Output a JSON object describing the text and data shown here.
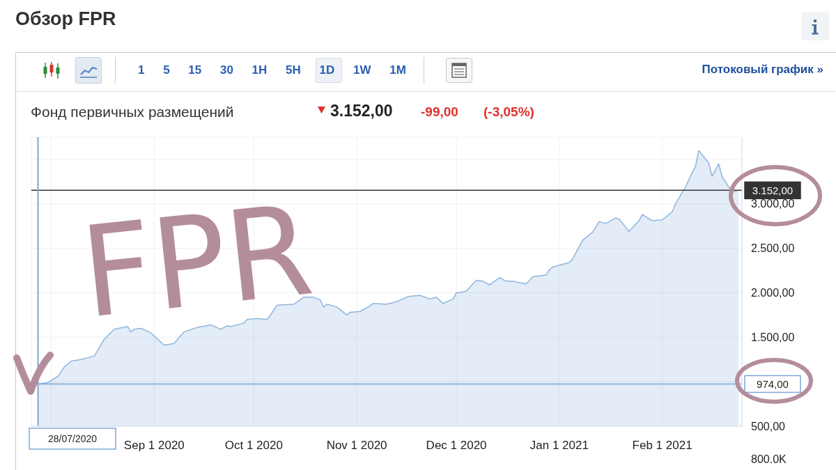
{
  "chart_data": {
    "type": "area",
    "title": "Обзор FPR",
    "subtitle": "Фонд первичных размещений",
    "x": [
      "2020-07-28",
      "2020-07-31",
      "2020-08-03",
      "2020-08-05",
      "2020-08-07",
      "2020-08-10",
      "2020-08-14",
      "2020-08-17",
      "2020-08-20",
      "2020-08-24",
      "2020-08-25",
      "2020-08-26",
      "2020-08-28",
      "2020-08-31",
      "2020-09-04",
      "2020-09-07",
      "2020-09-09",
      "2020-09-10",
      "2020-09-14",
      "2020-09-18",
      "2020-09-21",
      "2020-09-23",
      "2020-09-24",
      "2020-09-28",
      "2020-09-29",
      "2020-10-02",
      "2020-10-05",
      "2020-10-06",
      "2020-10-08",
      "2020-10-13",
      "2020-10-15",
      "2020-10-16",
      "2020-10-19",
      "2020-10-21",
      "2020-10-22",
      "2020-10-23",
      "2020-10-26",
      "2020-10-29",
      "2020-10-30",
      "2020-11-02",
      "2020-11-04",
      "2020-11-06",
      "2020-11-10",
      "2020-11-13",
      "2020-11-16",
      "2020-11-17",
      "2020-11-20",
      "2020-11-23",
      "2020-11-25",
      "2020-11-27",
      "2020-11-30",
      "2020-12-01",
      "2020-12-03",
      "2020-12-04",
      "2020-12-07",
      "2020-12-09",
      "2020-12-11",
      "2020-12-14",
      "2020-12-16",
      "2020-12-18",
      "2020-12-22",
      "2020-12-24",
      "2020-12-28",
      "2020-12-29",
      "2020-12-30",
      "2021-01-04",
      "2021-01-05",
      "2021-01-08",
      "2021-01-11",
      "2021-01-13",
      "2021-01-15",
      "2021-01-18",
      "2021-01-19",
      "2021-01-22",
      "2021-01-25",
      "2021-01-26",
      "2021-01-29",
      "2021-02-01",
      "2021-02-03",
      "2021-02-04",
      "2021-02-05",
      "2021-02-08",
      "2021-02-10",
      "2021-02-11",
      "2021-02-12",
      "2021-02-15",
      "2021-02-16",
      "2021-02-18",
      "2021-02-19",
      "2021-02-22",
      "2021-02-24"
    ],
    "values": [
      974,
      990,
      1060,
      1170,
      1230,
      1250,
      1290,
      1480,
      1590,
      1620,
      1560,
      1590,
      1600,
      1550,
      1410,
      1430,
      1520,
      1560,
      1610,
      1640,
      1590,
      1630,
      1620,
      1660,
      1700,
      1710,
      1700,
      1750,
      1860,
      1870,
      1920,
      1950,
      1950,
      1920,
      1840,
      1870,
      1840,
      1750,
      1780,
      1790,
      1830,
      1880,
      1870,
      1900,
      1950,
      1960,
      1970,
      1930,
      1950,
      1880,
      1930,
      2000,
      2010,
      2020,
      2140,
      2130,
      2090,
      2170,
      2130,
      2130,
      2100,
      2180,
      2200,
      2260,
      2290,
      2340,
      2380,
      2590,
      2680,
      2800,
      2780,
      2840,
      2830,
      2690,
      2810,
      2880,
      2810,
      2820,
      2880,
      2910,
      3000,
      3190,
      3350,
      3420,
      3600,
      3460,
      3310,
      3450,
      3310,
      3130,
      3152
    ],
    "color": "#8fb5de",
    "xlim": [
      "2020-07-26",
      "2021-02-25"
    ],
    "xticks": [
      {
        "value": "2020-08-01",
        "label": null
      },
      {
        "value": "2020-09-01",
        "label": "Sep 1 2020"
      },
      {
        "value": "2020-10-01",
        "label": "Oct 1 2020"
      },
      {
        "value": "2020-11-01",
        "label": "Nov 1 2020"
      },
      {
        "value": "2020-12-01",
        "label": "Dec 1 2020"
      },
      {
        "value": "2021-01-01",
        "label": "Jan 1 2021"
      },
      {
        "value": "2021-02-01",
        "label": "Feb 1 2021"
      }
    ],
    "ylim": [
      500,
      3750
    ],
    "yticks": [
      {
        "value": 500,
        "label": "500,00"
      },
      {
        "value": 1000,
        "label": null
      },
      {
        "value": 1500,
        "label": "1.500,00"
      },
      {
        "value": 2000,
        "label": "2.000,00"
      },
      {
        "value": 2500,
        "label": "2.500,00"
      },
      {
        "value": 3000,
        "label": "3.000,00"
      },
      {
        "value": 3500,
        "label": null
      }
    ],
    "grid": true,
    "ref_lines": [
      {
        "axis": "y",
        "value": 3152,
        "label": "3.152,00",
        "color": "#333333"
      },
      {
        "axis": "y",
        "value": 974,
        "label": "974,00",
        "color": "#7ea6d8"
      },
      {
        "axis": "x",
        "value": "2020-07-28",
        "label": "28/07/2020",
        "color": "#7ea6d8"
      }
    ],
    "annotations": [
      "1 5 15 30 1H 5H 1D 1W 1M",
      "Потоковый график »",
      "3.152,00",
      "-99,00",
      "(-3,05%)",
      "FPR",
      "800.0K"
    ]
  }
}
